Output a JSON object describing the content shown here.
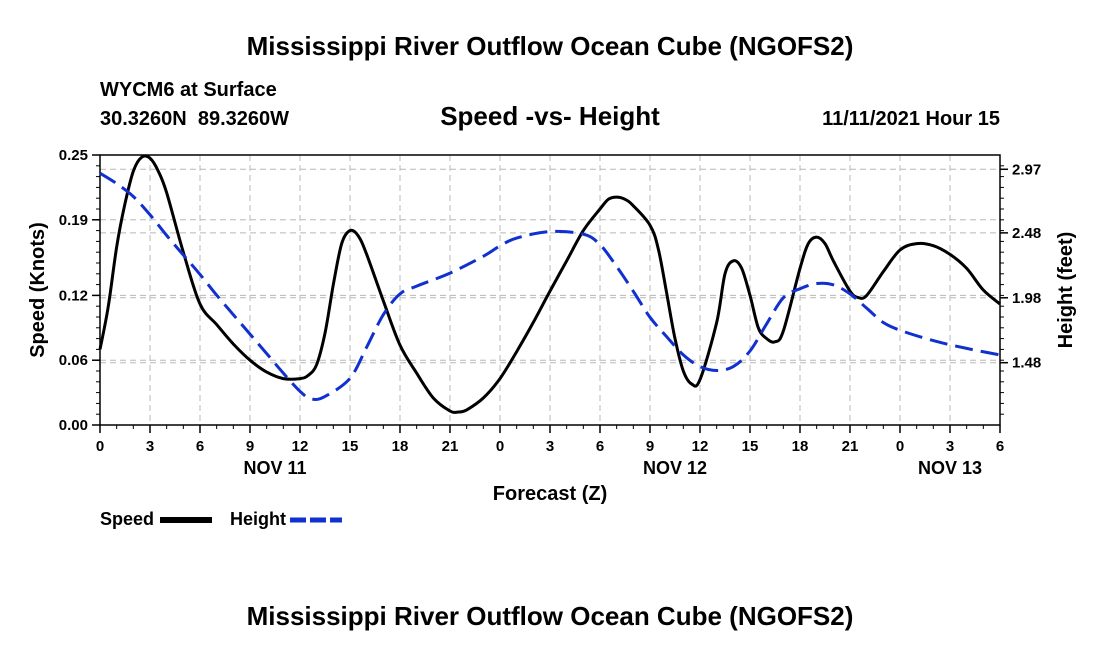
{
  "page": {
    "title_top": "Mississippi River Outflow Ocean Cube (NGOFS2)",
    "title_bottom": "Mississippi River Outflow Ocean Cube (NGOFS2)"
  },
  "chart_data": {
    "type": "line",
    "title": "Speed -vs- Height",
    "station": "WYCM6 at Surface",
    "coordinates": "30.3260N  89.3260W",
    "datetime": "11/11/2021 Hour 15",
    "xlabel": "Forecast (Z)",
    "ylabel_left": "Speed (Knots)",
    "ylabel_right": "Height (feet)",
    "x_range": [
      0,
      54
    ],
    "x_ticks": [
      0,
      3,
      6,
      9,
      12,
      15,
      18,
      21,
      24,
      27,
      30,
      33,
      36,
      39,
      42,
      45,
      48,
      51,
      54
    ],
    "x_tick_labels": [
      "0",
      "3",
      "6",
      "9",
      "12",
      "15",
      "18",
      "21",
      "0",
      "3",
      "6",
      "9",
      "12",
      "15",
      "18",
      "21",
      "0",
      "3",
      "6"
    ],
    "day_labels": [
      {
        "x": 10.5,
        "label": "NOV 11"
      },
      {
        "x": 34.5,
        "label": "NOV 12"
      },
      {
        "x": 51,
        "label": "NOV 13"
      }
    ],
    "y_left": {
      "range": [
        0,
        0.25
      ],
      "ticks": [
        0.0,
        0.06,
        0.12,
        0.19,
        0.25
      ],
      "tick_labels": [
        "0.00",
        "0.06",
        "0.12",
        "0.19",
        "0.25"
      ]
    },
    "y_right": {
      "range": [
        1.0,
        3.08
      ],
      "ticks": [
        1.48,
        1.98,
        2.48,
        2.97
      ],
      "tick_labels": [
        "1.48",
        "1.98",
        "2.48",
        "2.97"
      ]
    },
    "series": [
      {
        "name": "Speed",
        "axis": "left",
        "color": "#000000",
        "style": "solid",
        "points": [
          [
            0,
            0.07
          ],
          [
            0.5,
            0.11
          ],
          [
            1,
            0.165
          ],
          [
            1.5,
            0.205
          ],
          [
            2,
            0.235
          ],
          [
            2.5,
            0.248
          ],
          [
            3,
            0.247
          ],
          [
            3.5,
            0.235
          ],
          [
            4,
            0.215
          ],
          [
            5,
            0.16
          ],
          [
            6,
            0.112
          ],
          [
            7,
            0.093
          ],
          [
            8,
            0.075
          ],
          [
            9,
            0.06
          ],
          [
            10,
            0.049
          ],
          [
            11,
            0.043
          ],
          [
            12,
            0.043
          ],
          [
            12.5,
            0.046
          ],
          [
            13,
            0.056
          ],
          [
            13.5,
            0.085
          ],
          [
            14,
            0.13
          ],
          [
            14.5,
            0.168
          ],
          [
            15,
            0.18
          ],
          [
            15.5,
            0.175
          ],
          [
            16,
            0.158
          ],
          [
            17,
            0.115
          ],
          [
            18,
            0.074
          ],
          [
            19,
            0.048
          ],
          [
            20,
            0.025
          ],
          [
            21,
            0.013
          ],
          [
            21.5,
            0.012
          ],
          [
            22,
            0.014
          ],
          [
            23,
            0.025
          ],
          [
            24,
            0.043
          ],
          [
            25,
            0.068
          ],
          [
            26,
            0.095
          ],
          [
            27,
            0.124
          ],
          [
            28,
            0.152
          ],
          [
            29,
            0.18
          ],
          [
            30,
            0.2
          ],
          [
            30.5,
            0.209
          ],
          [
            31,
            0.211
          ],
          [
            31.5,
            0.209
          ],
          [
            32,
            0.203
          ],
          [
            33,
            0.185
          ],
          [
            33.5,
            0.163
          ],
          [
            34,
            0.122
          ],
          [
            34.5,
            0.08
          ],
          [
            35,
            0.05
          ],
          [
            35.5,
            0.038
          ],
          [
            36,
            0.042
          ],
          [
            37,
            0.095
          ],
          [
            37.5,
            0.14
          ],
          [
            38,
            0.152
          ],
          [
            38.5,
            0.145
          ],
          [
            39,
            0.12
          ],
          [
            39.5,
            0.09
          ],
          [
            40,
            0.08
          ],
          [
            40.5,
            0.077
          ],
          [
            41,
            0.087
          ],
          [
            42,
            0.145
          ],
          [
            42.5,
            0.168
          ],
          [
            43,
            0.174
          ],
          [
            43.5,
            0.168
          ],
          [
            44,
            0.152
          ],
          [
            45,
            0.124
          ],
          [
            45.5,
            0.118
          ],
          [
            46,
            0.12
          ],
          [
            47,
            0.142
          ],
          [
            48,
            0.162
          ],
          [
            49,
            0.168
          ],
          [
            50,
            0.166
          ],
          [
            51,
            0.158
          ],
          [
            52,
            0.145
          ],
          [
            53,
            0.125
          ],
          [
            54,
            0.112
          ]
        ]
      },
      {
        "name": "Height",
        "axis": "right",
        "color": "#1030d0",
        "style": "dashed",
        "points": [
          [
            0,
            2.94
          ],
          [
            1,
            2.86
          ],
          [
            2,
            2.76
          ],
          [
            3,
            2.62
          ],
          [
            4,
            2.46
          ],
          [
            5,
            2.31
          ],
          [
            6,
            2.16
          ],
          [
            7,
            2.0
          ],
          [
            8,
            1.85
          ],
          [
            9,
            1.7
          ],
          [
            10,
            1.55
          ],
          [
            11,
            1.4
          ],
          [
            12,
            1.26
          ],
          [
            12.7,
            1.2
          ],
          [
            13.5,
            1.22
          ],
          [
            15,
            1.36
          ],
          [
            16,
            1.6
          ],
          [
            17,
            1.85
          ],
          [
            18,
            2.01
          ],
          [
            19,
            2.07
          ],
          [
            21,
            2.17
          ],
          [
            23,
            2.3
          ],
          [
            24,
            2.38
          ],
          [
            25,
            2.44
          ],
          [
            27,
            2.49
          ],
          [
            29,
            2.47
          ],
          [
            30,
            2.39
          ],
          [
            31,
            2.22
          ],
          [
            32,
            2.03
          ],
          [
            33,
            1.83
          ],
          [
            34,
            1.68
          ],
          [
            35,
            1.54
          ],
          [
            36,
            1.45
          ],
          [
            37,
            1.42
          ],
          [
            38,
            1.45
          ],
          [
            39,
            1.57
          ],
          [
            40,
            1.78
          ],
          [
            41,
            1.98
          ],
          [
            42,
            2.05
          ],
          [
            43,
            2.09
          ],
          [
            44,
            2.08
          ],
          [
            45,
            2.01
          ],
          [
            46,
            1.9
          ],
          [
            47,
            1.79
          ],
          [
            48,
            1.73
          ],
          [
            50,
            1.65
          ],
          [
            52,
            1.59
          ],
          [
            54,
            1.54
          ]
        ]
      }
    ],
    "legend": [
      {
        "label": "Speed",
        "color": "#000000",
        "style": "solid"
      },
      {
        "label": "Height",
        "color": "#1030d0",
        "style": "dashed"
      }
    ]
  }
}
